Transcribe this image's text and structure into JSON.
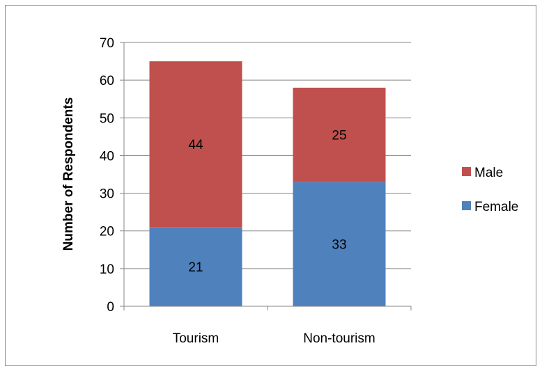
{
  "chart_data": {
    "type": "bar",
    "stacked": true,
    "categories": [
      "Tourism",
      "Non-tourism"
    ],
    "series": [
      {
        "name": "Female",
        "values": [
          21,
          33
        ],
        "color": "#4f81bd"
      },
      {
        "name": "Male",
        "values": [
          44,
          25
        ],
        "color": "#c0504d"
      }
    ],
    "title": "",
    "xlabel": "",
    "ylabel": "Number of Respondents",
    "ylim": [
      0,
      70
    ],
    "yticks": [
      "0",
      "10",
      "20",
      "30",
      "40",
      "50",
      "60",
      "70"
    ],
    "grid": true,
    "legend_position": "right",
    "legend_order": [
      "Male",
      "Female"
    ],
    "data_labels": true
  }
}
